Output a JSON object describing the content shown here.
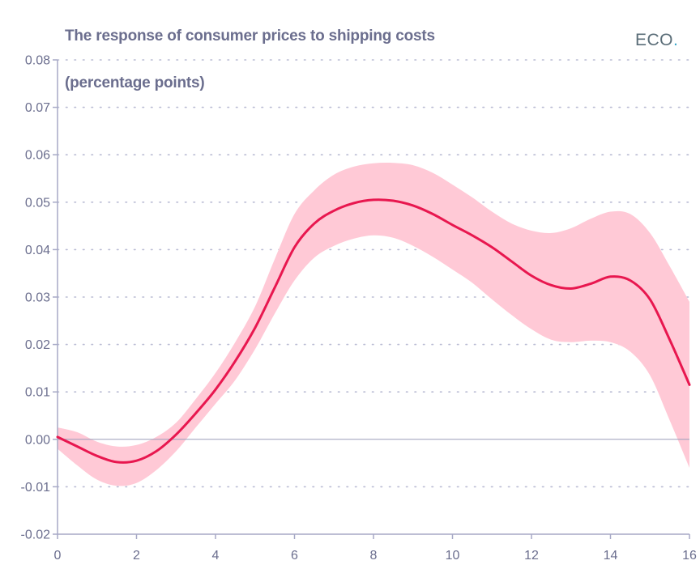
{
  "header": {
    "title": "The response of consumer prices to shipping costs",
    "subtitle": "(percentage points)",
    "logo_text": "ECO",
    "logo_dot": "."
  },
  "colors": {
    "line": "#e8174f",
    "band": "#ffc9d6",
    "axis": "#a7a9c6",
    "grid": "#b9bbd3",
    "text": "#6b6e8e"
  },
  "chart_data": {
    "type": "line",
    "title": "The response of consumer prices to shipping costs",
    "subtitle": "(percentage points)",
    "xlabel": "",
    "ylabel": "",
    "xlim": [
      0,
      16
    ],
    "ylim": [
      -0.02,
      0.08
    ],
    "x_ticks": [
      "0",
      "2",
      "4",
      "6",
      "8",
      "10",
      "12",
      "14",
      "16"
    ],
    "y_ticks": [
      "-0.02",
      "-0.01",
      "0.00",
      "0.01",
      "0.02",
      "0.03",
      "0.04",
      "0.05",
      "0.06",
      "0.07",
      "0.08"
    ],
    "grid": "horizontal dotted",
    "x": [
      0,
      0.5,
      1,
      1.5,
      2,
      2.5,
      3,
      3.5,
      4,
      4.5,
      5,
      5.5,
      6,
      6.5,
      7,
      7.5,
      8,
      8.5,
      9,
      9.5,
      10,
      10.5,
      11,
      11.5,
      12,
      12.5,
      13,
      13.5,
      14,
      14.5,
      15,
      15.5,
      16
    ],
    "series": [
      {
        "values": [
          0.0005,
          -0.0015,
          -0.0035,
          -0.0048,
          -0.0045,
          -0.0025,
          0.001,
          0.0055,
          0.0105,
          0.0165,
          0.0235,
          0.032,
          0.0405,
          0.0455,
          0.0482,
          0.0498,
          0.0505,
          0.0503,
          0.0493,
          0.0475,
          0.0452,
          0.043,
          0.0405,
          0.0375,
          0.0345,
          0.0325,
          0.0318,
          0.0328,
          0.0343,
          0.0335,
          0.0295,
          0.021,
          0.0115
        ]
      },
      {
        "name": "upper",
        "values": [
          0.0025,
          0.0015,
          -0.0005,
          -0.0015,
          -0.0012,
          0.0005,
          0.0035,
          0.0085,
          0.014,
          0.0205,
          0.028,
          0.038,
          0.0475,
          0.0525,
          0.0558,
          0.0575,
          0.0582,
          0.0583,
          0.0578,
          0.0562,
          0.0537,
          0.051,
          0.048,
          0.0455,
          0.044,
          0.0435,
          0.0445,
          0.0465,
          0.048,
          0.0475,
          0.0435,
          0.0365,
          0.029
        ]
      },
      {
        "name": "lower",
        "values": [
          -0.002,
          -0.0055,
          -0.0085,
          -0.0098,
          -0.0092,
          -0.0065,
          -0.0025,
          0.0025,
          0.0075,
          0.0125,
          0.019,
          0.0265,
          0.0335,
          0.0383,
          0.0408,
          0.0423,
          0.043,
          0.0425,
          0.0408,
          0.0385,
          0.0358,
          0.033,
          0.0295,
          0.0262,
          0.0232,
          0.021,
          0.0205,
          0.0208,
          0.0205,
          0.0185,
          0.0135,
          0.004,
          -0.006
        ]
      }
    ]
  }
}
